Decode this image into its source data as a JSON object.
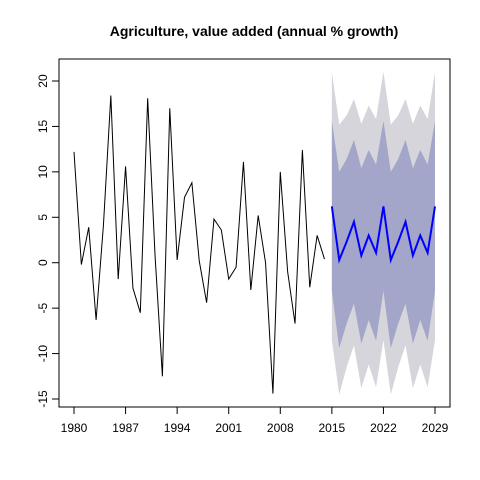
{
  "chart_data": {
    "type": "line",
    "title": "Agriculture, value added (annual % growth)",
    "xlabel": "",
    "ylabel": "",
    "xlim": [
      1980,
      2029
    ],
    "ylim": [
      -15,
      20
    ],
    "x_ticks": [
      1980,
      1987,
      1994,
      2001,
      2008,
      2015,
      2022,
      2029
    ],
    "y_ticks": [
      -15,
      -10,
      -5,
      0,
      5,
      10,
      15,
      20
    ],
    "grid": false,
    "legend": "none",
    "series": [
      {
        "role": "history",
        "color": "#000000",
        "x": [
          1980,
          1981,
          1982,
          1983,
          1984,
          1985,
          1986,
          1987,
          1988,
          1989,
          1990,
          1991,
          1992,
          1993,
          1994,
          1995,
          1996,
          1997,
          1998,
          1999,
          2000,
          2001,
          2002,
          2003,
          2004,
          2005,
          2006,
          2007,
          2008,
          2009,
          2010,
          2011,
          2012,
          2013,
          2014
        ],
        "values": [
          12.2,
          -0.2,
          3.9,
          -6.3,
          4.2,
          18.4,
          -1.8,
          10.6,
          -2.8,
          -5.5,
          18.1,
          0.8,
          -12.5,
          17.0,
          0.3,
          7.2,
          8.8,
          0.2,
          -4.4,
          4.8,
          3.6,
          -1.8,
          -0.5,
          11.1,
          -3.0,
          5.2,
          0.0,
          -14.4,
          10.0,
          -1.0,
          -6.7,
          12.4,
          -2.7,
          3.0,
          0.4
        ]
      },
      {
        "role": "forecast",
        "color": "#0000ff",
        "x": [
          2015,
          2016,
          2017,
          2018,
          2019,
          2020,
          2021,
          2022,
          2023,
          2024,
          2025,
          2026,
          2027,
          2028,
          2029
        ],
        "values": [
          6.2,
          0.3,
          2.3,
          4.5,
          0.8,
          3.0,
          1.1,
          6.2,
          0.3,
          2.3,
          4.5,
          0.8,
          3.0,
          1.1,
          6.2
        ],
        "lower_80": [
          -3.1,
          -9.4,
          -6.7,
          -4.5,
          -8.9,
          -6.3,
          -8.6,
          -3.1,
          -9.4,
          -6.7,
          -4.5,
          -8.9,
          -6.3,
          -8.6,
          -3.1
        ],
        "upper_80": [
          15.6,
          10.0,
          11.4,
          13.5,
          10.4,
          12.4,
          10.8,
          15.6,
          10.0,
          11.4,
          13.5,
          10.4,
          12.4,
          10.8,
          15.6
        ],
        "lower_95": [
          -8.5,
          -14.5,
          -11.5,
          -9.1,
          -13.8,
          -11.2,
          -13.7,
          -8.5,
          -14.5,
          -11.5,
          -9.1,
          -13.8,
          -11.2,
          -13.7,
          -8.5
        ],
        "upper_95": [
          21.0,
          15.2,
          16.2,
          18.0,
          15.3,
          17.3,
          15.8,
          21.0,
          15.2,
          16.2,
          18.0,
          15.3,
          17.3,
          15.8,
          21.0
        ]
      }
    ],
    "band_colors": {
      "ci95": "#d5d5db",
      "ci80": "#a3a5c9"
    }
  }
}
